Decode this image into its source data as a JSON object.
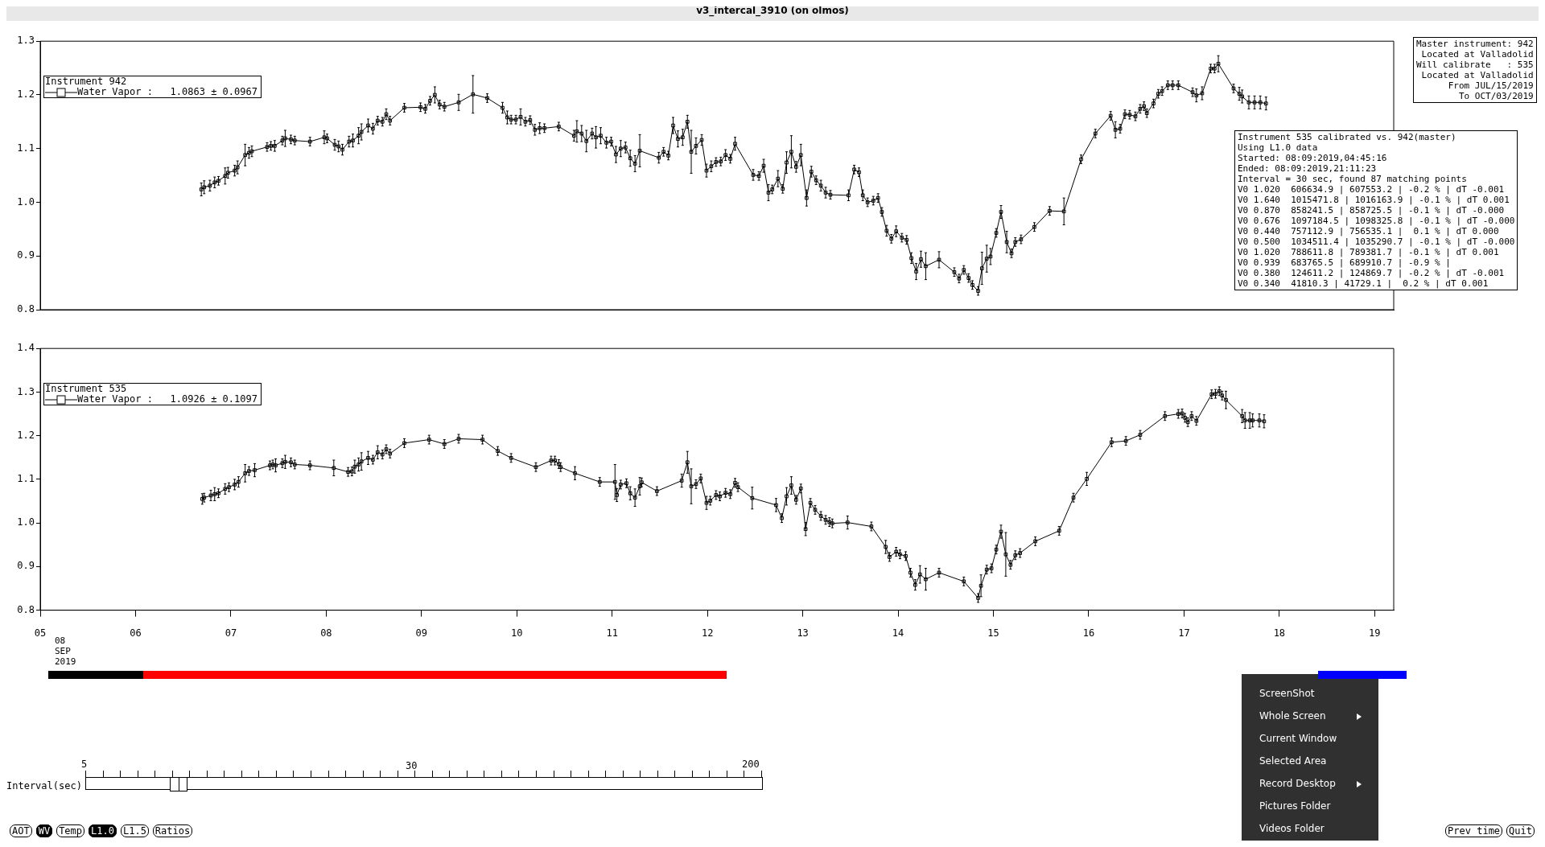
{
  "chart_data": [
    {
      "type": "line",
      "title": "v3_intercal_3910 (on olmos)",
      "legend_title": "Instrument 942",
      "legend": "top left",
      "marker": "square",
      "line_style": "solid",
      "grid": false,
      "tick_labels": "y",
      "xlim": [
        5,
        19.2
      ],
      "ylim": [
        0.8,
        1.3
      ],
      "yticks": [
        {
          "value": 0.8,
          "label": "0.8"
        },
        {
          "value": 0.9,
          "label": "0.9"
        },
        {
          "value": 1,
          "label": "1.0"
        },
        {
          "value": 1.1,
          "label": "1.1"
        },
        {
          "value": 1.2,
          "label": "1.2"
        },
        {
          "value": 1.3,
          "label": "1.3"
        }
      ],
      "annotations": [
        "Master instrument: 942\n Located at Valladolid\nWill calibrate   : 535\n Located at Valladolid\n      From JUL/15/2019\n        To OCT/03/2019",
        "Instrument 535 calibrated vs. 942(master)\nUsing L1.0 data\nStarted: 08:09:2019,04:45:16\nEnded: 08:09:2019,21:11:23\nInterval = 30 sec, found 87 matching points\nV0 1.020  606634.9 | 607553.2 | -0.2 % | dT -0.001\nV0 1.640  1015471.8 | 1016163.9 | -0.1 % | dT 0.001\nV0 0.870  858241.5 | 858725.5 | -0.1 % | dT -0.000\nV0 0.676  1097184.5 | 1098325.8 | -0.1 % | dT -0.000\nV0 0.440  757112.9 | 756535.1 |  0.1 % | dT 0.000\nV0 0.500  1034511.4 | 1035290.7 | -0.1 % | dT -0.000\nV0 1.020  788611.8 | 789381.7 | -0.1 % | dT 0.001\nV0 0.939  683765.5 | 689910.7 | -0.9 % |\nV0 0.380  124611.2 | 124869.7 | -0.2 % | dT -0.001\nV0 0.340  41810.3 | 41729.1 |  0.2 % | dT 0.001"
      ],
      "x": [
        6.69,
        6.72,
        6.78,
        6.83,
        6.87,
        6.94,
        6.97,
        7.04,
        7.07,
        7.15,
        7.19,
        7.22,
        7.38,
        7.42,
        7.46,
        7.54,
        7.57,
        7.63,
        7.67,
        7.83,
        7.98,
        8.01,
        8.09,
        8.13,
        8.17,
        8.24,
        8.28,
        8.34,
        8.37,
        8.44,
        8.49,
        8.54,
        8.59,
        8.63,
        8.67,
        8.82,
        8.99,
        9.04,
        9.09,
        9.14,
        9.19,
        9.24,
        9.39,
        9.54,
        9.69,
        9.85,
        9.9,
        9.94,
        9.99,
        10.04,
        10.09,
        10.14,
        10.19,
        10.24,
        10.29,
        10.44,
        10.6,
        10.63,
        10.68,
        10.73,
        10.79,
        10.83,
        10.88,
        10.94,
        10.99,
        11.04,
        11.09,
        11.14,
        11.19,
        11.24,
        11.29,
        11.49,
        11.54,
        11.59,
        11.64,
        11.69,
        11.74,
        11.79,
        11.83,
        11.88,
        11.94,
        11.99,
        12.04,
        12.09,
        12.14,
        12.19,
        12.24,
        12.29,
        12.48,
        12.54,
        12.59,
        12.64,
        12.68,
        12.74,
        12.79,
        12.83,
        12.88,
        12.93,
        12.98,
        13.04,
        13.09,
        13.14,
        13.19,
        13.24,
        13.29,
        13.48,
        13.54,
        13.59,
        13.63,
        13.68,
        13.74,
        13.79,
        13.83,
        13.88,
        13.93,
        13.98,
        14.04,
        14.09,
        14.14,
        14.19,
        14.24,
        14.29,
        14.43,
        14.59,
        14.64,
        14.69,
        14.74,
        14.78,
        14.84,
        14.88,
        14.93,
        14.97,
        15.03,
        15.08,
        15.14,
        15.19,
        15.23,
        15.29,
        15.43,
        15.59,
        15.74,
        15.92,
        16.07,
        16.23,
        16.28,
        16.33,
        16.38,
        16.43,
        16.49,
        16.54,
        16.58,
        16.61,
        16.68,
        16.73,
        16.77,
        16.83,
        16.88,
        16.94,
        17.09,
        17.13,
        17.19,
        17.28,
        17.32,
        17.36,
        17.52,
        17.58,
        17.61,
        17.68,
        17.74,
        17.8,
        17.86
      ],
      "series": [
        {
          "name": "Water Vapor :   1.0863 ± 0.0967",
          "color": "#000000",
          "values": [
            1.024,
            1.028,
            1.031,
            1.037,
            1.04,
            1.049,
            1.055,
            1.059,
            1.065,
            1.088,
            1.092,
            1.095,
            1.103,
            1.105,
            1.105,
            1.115,
            1.119,
            1.117,
            1.115,
            1.113,
            1.121,
            1.119,
            1.107,
            1.104,
            1.098,
            1.113,
            1.115,
            1.124,
            1.131,
            1.143,
            1.137,
            1.152,
            1.15,
            1.164,
            1.152,
            1.176,
            1.177,
            1.174,
            1.189,
            1.2,
            1.182,
            1.178,
            1.186,
            1.201,
            1.194,
            1.176,
            1.158,
            1.154,
            1.154,
            1.159,
            1.15,
            1.153,
            1.135,
            1.138,
            1.138,
            1.141,
            1.124,
            1.132,
            1.128,
            1.114,
            1.128,
            1.121,
            1.124,
            1.111,
            1.113,
            1.089,
            1.1,
            1.102,
            1.082,
            1.072,
            1.096,
            1.083,
            1.094,
            1.087,
            1.143,
            1.118,
            1.121,
            1.15,
            1.094,
            1.105,
            1.116,
            1.059,
            1.067,
            1.075,
            1.076,
            1.088,
            1.081,
            1.109,
            1.051,
            1.049,
            1.068,
            1.018,
            1.024,
            1.044,
            1.025,
            1.074,
            1.094,
            1.066,
            1.088,
            1.008,
            1.057,
            1.041,
            1.031,
            1.018,
            1.014,
            1.013,
            1.061,
            1.056,
            1.013,
            1.0,
            1.003,
            1.008,
            0.982,
            0.947,
            0.932,
            0.946,
            0.934,
            0.93,
            0.896,
            0.871,
            0.894,
            0.881,
            0.893,
            0.87,
            0.858,
            0.874,
            0.859,
            0.846,
            0.835,
            0.877,
            0.895,
            0.899,
            0.943,
            0.982,
            0.926,
            0.905,
            0.926,
            0.931,
            0.954,
            0.984,
            0.983,
            1.08,
            1.128,
            1.161,
            1.135,
            1.137,
            1.164,
            1.163,
            1.16,
            1.174,
            1.179,
            1.166,
            1.184,
            1.202,
            1.207,
            1.218,
            1.218,
            1.218,
            1.205,
            1.199,
            1.203,
            1.249,
            1.249,
            1.258,
            1.212,
            1.202,
            1.197,
            1.186,
            1.186,
            1.186,
            1.184
          ],
          "errors": [
            0.012,
            0.012,
            0.01,
            0.01,
            0.008,
            0.015,
            0.01,
            0.01,
            0.012,
            0.02,
            0.01,
            0.01,
            0.008,
            0.008,
            0.01,
            0.008,
            0.015,
            0.008,
            0.008,
            0.008,
            0.012,
            0.008,
            0.01,
            0.01,
            0.01,
            0.01,
            0.012,
            0.015,
            0.015,
            0.012,
            0.01,
            0.008,
            0.008,
            0.01,
            0.008,
            0.008,
            0.008,
            0.008,
            0.008,
            0.015,
            0.008,
            0.008,
            0.015,
            0.035,
            0.008,
            0.01,
            0.012,
            0.008,
            0.008,
            0.015,
            0.008,
            0.008,
            0.01,
            0.01,
            0.008,
            0.008,
            0.01,
            0.02,
            0.015,
            0.02,
            0.01,
            0.02,
            0.015,
            0.01,
            0.008,
            0.015,
            0.015,
            0.01,
            0.015,
            0.015,
            0.03,
            0.01,
            0.008,
            0.008,
            0.015,
            0.015,
            0.015,
            0.012,
            0.04,
            0.015,
            0.01,
            0.012,
            0.01,
            0.008,
            0.008,
            0.01,
            0.008,
            0.012,
            0.01,
            0.008,
            0.012,
            0.015,
            0.008,
            0.015,
            0.008,
            0.02,
            0.03,
            0.01,
            0.02,
            0.015,
            0.01,
            0.008,
            0.01,
            0.01,
            0.008,
            0.01,
            0.008,
            0.008,
            0.01,
            0.008,
            0.008,
            0.008,
            0.008,
            0.01,
            0.008,
            0.01,
            0.008,
            0.008,
            0.01,
            0.015,
            0.015,
            0.025,
            0.015,
            0.008,
            0.008,
            0.008,
            0.008,
            0.008,
            0.008,
            0.03,
            0.025,
            0.015,
            0.008,
            0.012,
            0.02,
            0.008,
            0.008,
            0.008,
            0.008,
            0.008,
            0.025,
            0.008,
            0.008,
            0.008,
            0.015,
            0.008,
            0.008,
            0.008,
            0.008,
            0.008,
            0.008,
            0.008,
            0.008,
            0.008,
            0.008,
            0.008,
            0.008,
            0.008,
            0.008,
            0.012,
            0.012,
            0.008,
            0.008,
            0.015,
            0.008,
            0.012,
            0.012,
            0.012,
            0.012,
            0.012,
            0.012
          ]
        }
      ]
    },
    {
      "type": "line",
      "legend_title": "Instrument 535",
      "legend": "top left",
      "marker": "square",
      "line_style": "solid",
      "grid": false,
      "xlim": [
        5,
        19.2
      ],
      "xticks": [
        {
          "value": 5,
          "label": "05"
        },
        {
          "value": 6,
          "label": "06"
        },
        {
          "value": 7,
          "label": "07"
        },
        {
          "value": 8,
          "label": "08"
        },
        {
          "value": 9,
          "label": "09"
        },
        {
          "value": 10,
          "label": "10"
        },
        {
          "value": 11,
          "label": "11"
        },
        {
          "value": 12,
          "label": "12"
        },
        {
          "value": 13,
          "label": "13"
        },
        {
          "value": 14,
          "label": "14"
        },
        {
          "value": 15,
          "label": "15"
        },
        {
          "value": 16,
          "label": "16"
        },
        {
          "value": 17,
          "label": "17"
        },
        {
          "value": 18,
          "label": "18"
        },
        {
          "value": 19,
          "label": "19"
        }
      ],
      "ylim": [
        0.8,
        1.4
      ],
      "yticks": [
        {
          "value": 0.8,
          "label": "0.8"
        },
        {
          "value": 0.9,
          "label": "0.9"
        },
        {
          "value": 1,
          "label": "1.0"
        },
        {
          "value": 1.1,
          "label": "1.1"
        },
        {
          "value": 1.2,
          "label": "1.2"
        },
        {
          "value": 1.3,
          "label": "1.3"
        },
        {
          "value": 1.4,
          "label": "1.4"
        }
      ],
      "annotations": [
        "08\nSEP\n2019"
      ],
      "x": [
        6.7,
        6.72,
        6.79,
        6.83,
        6.87,
        6.94,
        6.98,
        7.04,
        7.08,
        7.15,
        7.19,
        7.25,
        7.41,
        7.44,
        7.47,
        7.54,
        7.57,
        7.63,
        7.67,
        7.83,
        8.08,
        8.23,
        8.27,
        8.3,
        8.34,
        8.37,
        8.44,
        8.49,
        8.54,
        8.59,
        8.63,
        8.67,
        8.82,
        9.08,
        9.24,
        9.39,
        9.64,
        9.8,
        9.94,
        10.2,
        10.36,
        10.4,
        10.44,
        10.46,
        10.61,
        10.87,
        11.03,
        11.05,
        11.09,
        11.15,
        11.19,
        11.24,
        11.29,
        11.31,
        11.47,
        11.73,
        11.79,
        11.83,
        11.88,
        11.93,
        11.99,
        12.03,
        12.09,
        12.13,
        12.19,
        12.24,
        12.29,
        12.32,
        12.47,
        12.72,
        12.78,
        12.83,
        12.88,
        12.93,
        12.98,
        13.03,
        13.08,
        13.13,
        13.19,
        13.24,
        13.28,
        13.31,
        13.47,
        13.72,
        13.87,
        13.91,
        13.98,
        14.02,
        14.08,
        14.13,
        14.18,
        14.23,
        14.29,
        14.43,
        14.69,
        14.84,
        14.87,
        14.93,
        14.98,
        15.03,
        15.08,
        15.13,
        15.18,
        15.23,
        15.28,
        15.44,
        15.69,
        15.84,
        15.98,
        16.24,
        16.39,
        16.54,
        16.8,
        16.94,
        16.98,
        17.01,
        17.04,
        17.08,
        17.13,
        17.29,
        17.33,
        17.37,
        17.4,
        17.44,
        17.61,
        17.64,
        17.69,
        17.72,
        17.79,
        17.84
      ],
      "series": [
        {
          "name": "Water Vapor :   1.0926 ± 0.1097",
          "color": "#000000",
          "values": [
            1.055,
            1.058,
            1.063,
            1.066,
            1.068,
            1.078,
            1.082,
            1.088,
            1.094,
            1.114,
            1.119,
            1.121,
            1.132,
            1.134,
            1.132,
            1.137,
            1.14,
            1.139,
            1.134,
            1.132,
            1.126,
            1.117,
            1.118,
            1.129,
            1.134,
            1.141,
            1.149,
            1.145,
            1.162,
            1.157,
            1.169,
            1.159,
            1.183,
            1.191,
            1.181,
            1.193,
            1.191,
            1.165,
            1.149,
            1.128,
            1.143,
            1.143,
            1.135,
            1.128,
            1.114,
            1.094,
            1.094,
            1.064,
            1.088,
            1.091,
            1.068,
            1.058,
            1.084,
            1.093,
            1.073,
            1.097,
            1.139,
            1.084,
            1.089,
            1.102,
            1.046,
            1.051,
            1.064,
            1.061,
            1.069,
            1.066,
            1.092,
            1.082,
            1.057,
            1.041,
            1.011,
            1.061,
            1.086,
            1.053,
            1.079,
            0.986,
            1.046,
            1.03,
            1.016,
            1.007,
            1.002,
            0.999,
            1.001,
            0.992,
            0.945,
            0.922,
            0.934,
            0.928,
            0.924,
            0.886,
            0.858,
            0.882,
            0.871,
            0.886,
            0.866,
            0.828,
            0.856,
            0.893,
            0.896,
            0.939,
            0.98,
            0.928,
            0.904,
            0.926,
            0.931,
            0.958,
            0.982,
            1.058,
            1.101,
            1.185,
            1.188,
            1.202,
            1.245,
            1.25,
            1.251,
            1.241,
            1.231,
            1.245,
            1.234,
            1.295,
            1.296,
            1.302,
            1.292,
            1.282,
            1.245,
            1.235,
            1.235,
            1.235,
            1.235,
            1.233
          ],
          "errors": [
            0.012,
            0.01,
            0.012,
            0.015,
            0.01,
            0.012,
            0.01,
            0.012,
            0.012,
            0.02,
            0.01,
            0.015,
            0.01,
            0.01,
            0.015,
            0.01,
            0.015,
            0.01,
            0.01,
            0.01,
            0.018,
            0.01,
            0.01,
            0.015,
            0.015,
            0.02,
            0.015,
            0.01,
            0.015,
            0.01,
            0.01,
            0.01,
            0.01,
            0.01,
            0.01,
            0.01,
            0.01,
            0.01,
            0.01,
            0.01,
            0.01,
            0.01,
            0.01,
            0.01,
            0.015,
            0.01,
            0.04,
            0.015,
            0.01,
            0.01,
            0.015,
            0.02,
            0.02,
            0.01,
            0.01,
            0.015,
            0.025,
            0.04,
            0.01,
            0.01,
            0.015,
            0.01,
            0.01,
            0.01,
            0.01,
            0.01,
            0.01,
            0.01,
            0.025,
            0.015,
            0.01,
            0.02,
            0.02,
            0.01,
            0.01,
            0.015,
            0.01,
            0.01,
            0.01,
            0.01,
            0.01,
            0.01,
            0.015,
            0.01,
            0.015,
            0.01,
            0.01,
            0.01,
            0.01,
            0.01,
            0.012,
            0.02,
            0.025,
            0.01,
            0.01,
            0.01,
            0.025,
            0.01,
            0.01,
            0.01,
            0.015,
            0.05,
            0.01,
            0.01,
            0.01,
            0.01,
            0.01,
            0.01,
            0.015,
            0.01,
            0.01,
            0.01,
            0.01,
            0.01,
            0.01,
            0.01,
            0.01,
            0.01,
            0.01,
            0.01,
            0.01,
            0.01,
            0.01,
            0.02,
            0.015,
            0.018,
            0.018,
            0.015,
            0.015,
            0.015
          ]
        }
      ]
    },
    {
      "type": "other",
      "annotations": [
        "Interval(sec)",
        "5",
        "30",
        "200",
        "AOT",
        "WV",
        "Temp",
        "L1.0",
        "L1.5",
        "Ratios",
        "Prev time",
        "Quit",
        "ScreenShot",
        "Whole Screen",
        "Current Window",
        "Selected Area",
        "Record Desktop",
        "Pictures Folder",
        "Videos Folder"
      ]
    }
  ]
}
